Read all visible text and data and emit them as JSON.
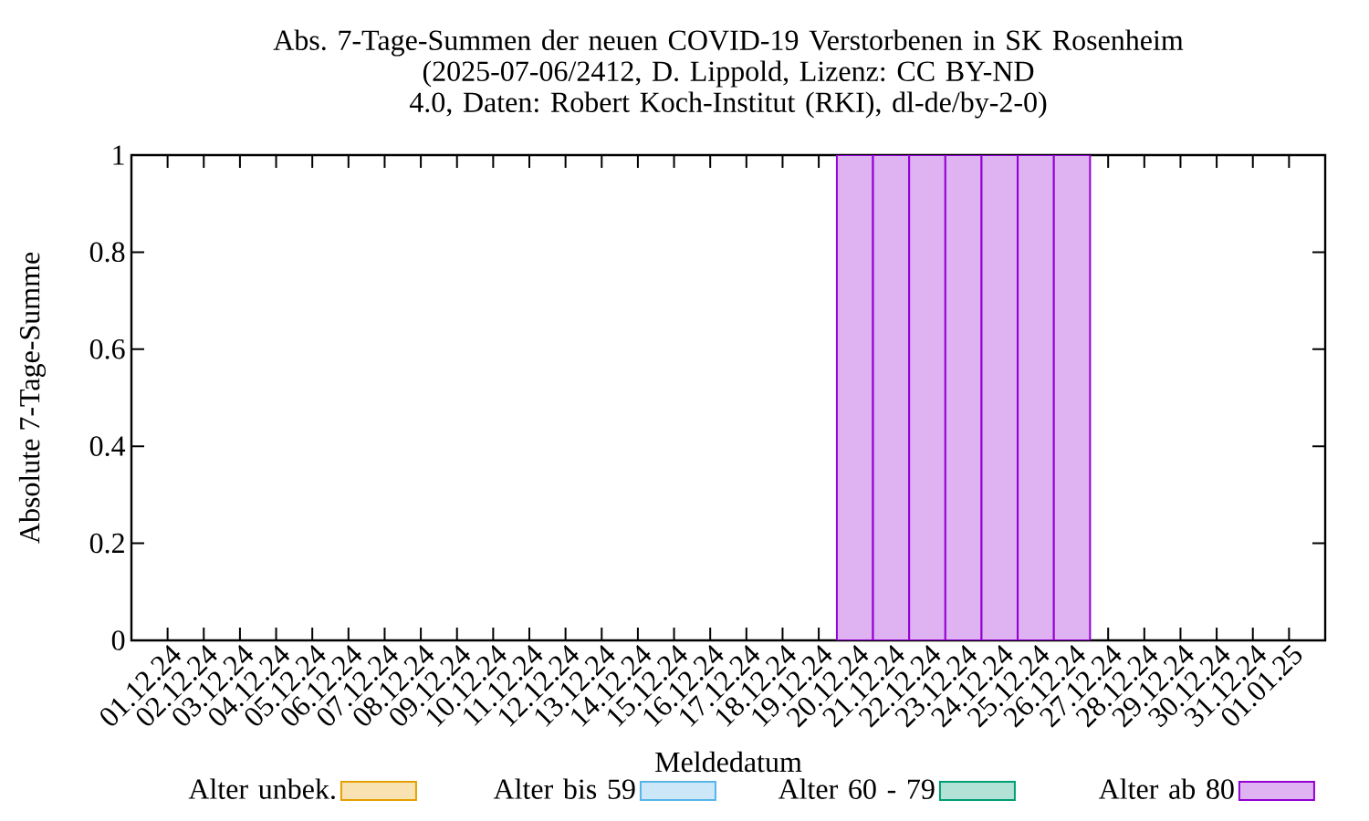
{
  "chart_data": {
    "type": "bar",
    "title": "Abs. 7-Tage-Summen der neuen COVID-19 Verstorbenen in SK Rosenheim",
    "subtitle": "(2025-07-06/2412, D. Lippold, Lizenz: CC BY-ND 4.0, Daten: Robert Koch-Institut (RKI), dl-de/by-2-0)",
    "xlabel": "Meldedatum",
    "ylabel": "Absolute 7-Tage-Summe",
    "categories": [
      "01.12.24",
      "02.12.24",
      "03.12.24",
      "04.12.24",
      "05.12.24",
      "06.12.24",
      "07.12.24",
      "08.12.24",
      "09.12.24",
      "10.12.24",
      "11.12.24",
      "12.12.24",
      "13.12.24",
      "14.12.24",
      "15.12.24",
      "16.12.24",
      "17.12.24",
      "18.12.24",
      "19.12.24",
      "20.12.24",
      "21.12.24",
      "22.12.24",
      "23.12.24",
      "24.12.24",
      "25.12.24",
      "26.12.24",
      "27.12.24",
      "28.12.24",
      "29.12.24",
      "30.12.24",
      "31.12.24",
      "01.01.25"
    ],
    "series": [
      {
        "name": "Alter unbek.",
        "color": "#e69f00",
        "values": [
          0,
          0,
          0,
          0,
          0,
          0,
          0,
          0,
          0,
          0,
          0,
          0,
          0,
          0,
          0,
          0,
          0,
          0,
          0,
          0,
          0,
          0,
          0,
          0,
          0,
          0,
          0,
          0,
          0,
          0,
          0,
          0
        ]
      },
      {
        "name": "Alter bis 59",
        "color": "#56b4e9",
        "values": [
          0,
          0,
          0,
          0,
          0,
          0,
          0,
          0,
          0,
          0,
          0,
          0,
          0,
          0,
          0,
          0,
          0,
          0,
          0,
          0,
          0,
          0,
          0,
          0,
          0,
          0,
          0,
          0,
          0,
          0,
          0,
          0
        ]
      },
      {
        "name": "Alter 60 - 79",
        "color": "#009e73",
        "values": [
          0,
          0,
          0,
          0,
          0,
          0,
          0,
          0,
          0,
          0,
          0,
          0,
          0,
          0,
          0,
          0,
          0,
          0,
          0,
          0,
          0,
          0,
          0,
          0,
          0,
          0,
          0,
          0,
          0,
          0,
          0,
          0
        ]
      },
      {
        "name": "Alter ab 80",
        "color": "#9400d3",
        "values": [
          0,
          0,
          0,
          0,
          0,
          0,
          0,
          0,
          0,
          0,
          0,
          0,
          0,
          0,
          0,
          0,
          0,
          0,
          0,
          1,
          1,
          1,
          1,
          1,
          1,
          1,
          0,
          0,
          0,
          0,
          0,
          0
        ]
      }
    ],
    "stacked": true,
    "ylim": [
      0,
      1
    ],
    "yticks": [
      0,
      0.2,
      0.4,
      0.6,
      0.8,
      1
    ],
    "legend": "bottom"
  }
}
